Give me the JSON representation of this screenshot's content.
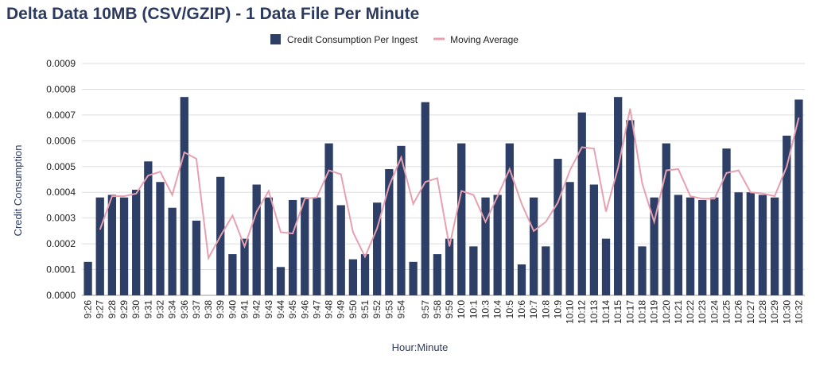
{
  "chart_data": {
    "type": "bar",
    "title": "Delta Data 10MB (CSV/GZIP) - 1 Data File Per Minute",
    "x_label": "Hour:Minute",
    "y_label": "Credit Consumption",
    "legend": "top",
    "grid": true,
    "categories": [
      "9:26",
      "9:27",
      "9:28",
      "9:29",
      "9:30",
      "9:31",
      "9:32",
      "9:34",
      "9:36",
      "9:37",
      "9:38",
      "9:39",
      "9:40",
      "9:41",
      "9:42",
      "9:43",
      "9:44",
      "9:45",
      "9:46",
      "9:47",
      "9:48",
      "9:49",
      "9:50",
      "9:51",
      "9:52",
      "9:53",
      "9:54",
      null,
      "9:57",
      "9:58",
      "9:59",
      "10:0",
      "10:1",
      "10:3",
      "10:4",
      "10:5",
      "10:6",
      "10:7",
      "10:8",
      "10:9",
      "10:10",
      "10:12",
      "10:13",
      "10:14",
      "10:15",
      "10:17",
      "10:18",
      "10:19",
      "10:20",
      "10:21",
      "10:22",
      "10:23",
      "10:24",
      "10:25",
      "10:26",
      "10:27",
      "10:28",
      "10:29",
      "10:30",
      "10:32"
    ],
    "series": [
      {
        "name": "Credit Consumption Per Ingest",
        "type": "bar",
        "color": "#2d3f66",
        "values": [
          0.00013,
          0.00038,
          0.00039,
          0.00038,
          0.00041,
          0.00052,
          0.00044,
          0.00034,
          0.00077,
          0.00029,
          0,
          0.00046,
          0.00016,
          0.00022,
          0.00043,
          0.00038,
          0.00011,
          0.00037,
          0.00038,
          0.00038,
          0.00059,
          0.00035,
          0.00014,
          0.00016,
          0.00036,
          0.00049,
          0.00058,
          0.00013,
          0.00075,
          0.00016,
          0.00022,
          0.00059,
          0.00019,
          0.00038,
          0.00039,
          0.00059,
          0.00012,
          0.00038,
          0.00019,
          0.00053,
          0.00044,
          0.00071,
          0.00043,
          0.00022,
          0.00077,
          0.00068,
          0.00019,
          0.00038,
          0.00059,
          0.00039,
          0.00038,
          0.00037,
          0.00038,
          0.00057,
          0.0004,
          0.0004,
          0.00039,
          0.00038,
          0.00062,
          0.00076
        ]
      },
      {
        "name": "Moving Average",
        "type": "line",
        "color": "#e8a0b0",
        "values": [
          null,
          0.000255,
          0.000385,
          0.000385,
          0.000395,
          0.000465,
          0.00048,
          0.00039,
          0.000555,
          0.00053,
          0.000145,
          0.00023,
          0.00031,
          0.00019,
          0.000325,
          0.000405,
          0.000245,
          0.00024,
          0.000375,
          0.00038,
          0.000485,
          0.00047,
          0.000245,
          0.00015,
          0.00026,
          0.000425,
          0.000535,
          0.000355,
          0.00044,
          0.000455,
          0.00019,
          0.000405,
          0.00039,
          0.000285,
          0.000385,
          0.00049,
          0.000355,
          0.00025,
          0.000285,
          0.00036,
          0.000485,
          0.000575,
          0.00057,
          0.000325,
          0.000495,
          0.000725,
          0.000435,
          0.000285,
          0.000485,
          0.00049,
          0.000385,
          0.000375,
          0.000375,
          0.000475,
          0.000485,
          0.0004,
          0.000395,
          0.000385,
          0.0005,
          0.00069
        ]
      }
    ],
    "ylim": [
      0,
      0.0009
    ],
    "yticks": [
      {
        "value": 0,
        "label": "0.0000"
      },
      {
        "value": 0.0001,
        "label": "0.0001"
      },
      {
        "value": 0.0002,
        "label": "0.0002"
      },
      {
        "value": 0.0003,
        "label": "0.0003"
      },
      {
        "value": 0.0004,
        "label": "0.0004"
      },
      {
        "value": 0.0005,
        "label": "0.0005"
      },
      {
        "value": 0.0006,
        "label": "0.0006"
      },
      {
        "value": 0.0007,
        "label": "0.0007"
      },
      {
        "value": 0.0008,
        "label": "0.0008"
      },
      {
        "value": 0.0009,
        "label": "0.0009"
      }
    ]
  }
}
